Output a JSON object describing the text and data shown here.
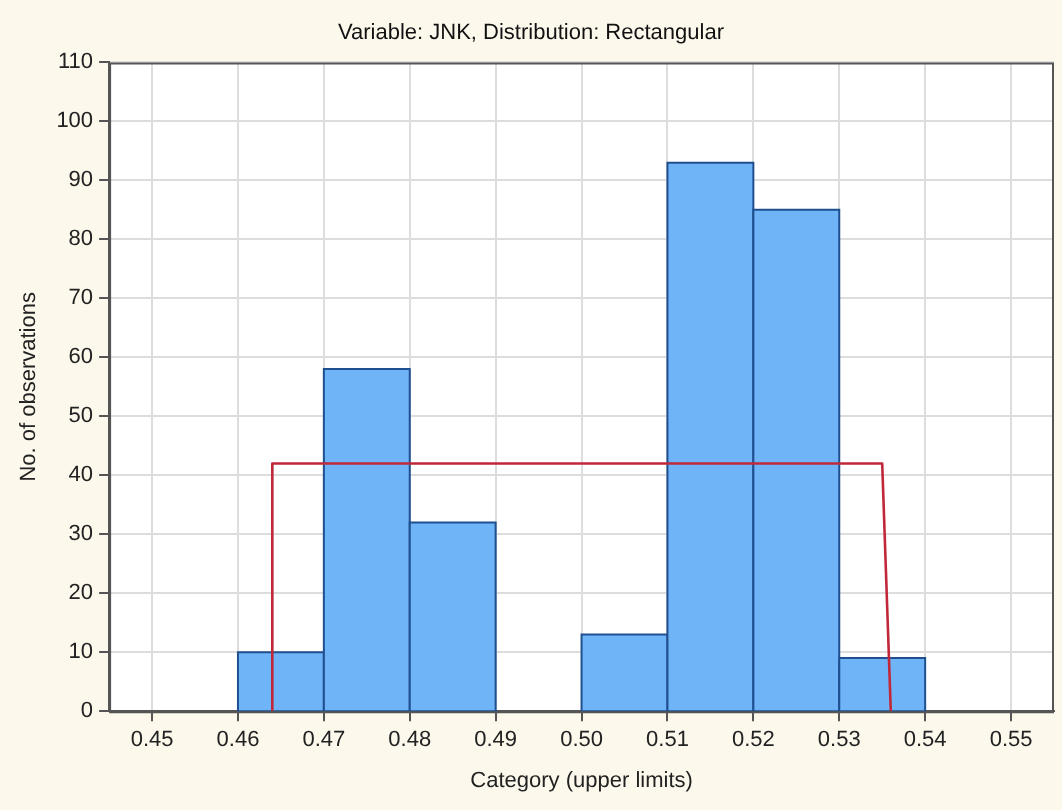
{
  "chart_data": {
    "type": "histogram",
    "title": "Variable: JNK, Distribution: Rectangular",
    "xlabel": "Category (upper limits)",
    "ylabel": "No. of observations",
    "bins": [
      0.46,
      0.47,
      0.48,
      0.49,
      0.5,
      0.51,
      0.52,
      0.53,
      0.54
    ],
    "values": [
      10,
      58,
      32,
      0,
      13,
      93,
      85,
      9
    ],
    "color": "#6fb4f7",
    "series": [
      {
        "type": "line",
        "color": "#c0283a",
        "x": [
          0.464,
          0.464,
          0.535,
          0.536
        ],
        "values": [
          0,
          42,
          42,
          0
        ]
      }
    ],
    "xlim": [
      0.445,
      0.555
    ],
    "xticks": [
      0.45,
      0.46,
      0.47,
      0.48,
      0.49,
      {
        "value": 0.5,
        "label": "0.50"
      },
      0.51,
      0.52,
      0.53,
      0.54,
      0.55
    ],
    "ylim": [
      0,
      110
    ],
    "yticks": [
      0,
      10,
      20,
      30,
      40,
      50,
      60,
      70,
      80,
      90,
      100,
      110
    ],
    "grid": true,
    "legend": false
  }
}
